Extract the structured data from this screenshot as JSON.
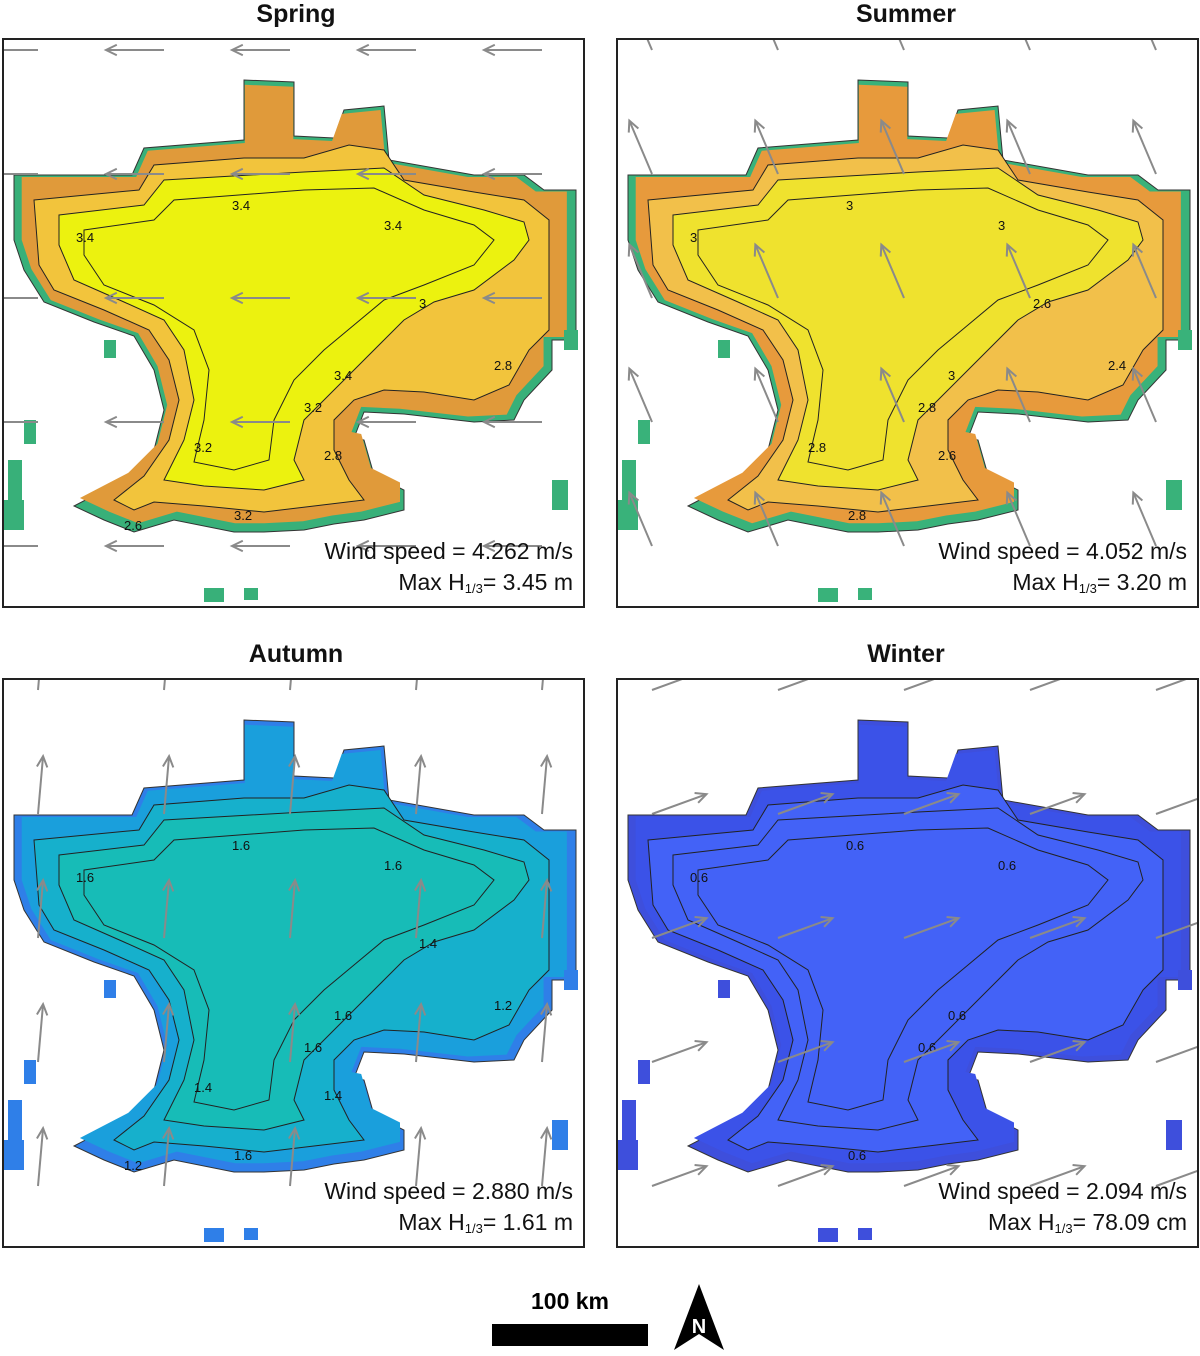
{
  "panels": [
    {
      "title": "Spring",
      "wind_label": "Wind speed = ",
      "wind_value": "4.262 m/s",
      "max_label": "Max H",
      "max_sub": "1/3",
      "max_value": "= 3.45 m",
      "colors": {
        "core": "#ecf20f",
        "mid": "#f2c43c",
        "edge": "#e09a3a",
        "shore": "#38b079",
        "tip": "#3a5cf5"
      },
      "contour_labels": [
        "3.4",
        "3.4",
        "3.4",
        "3.4",
        "3.2",
        "3.2",
        "3.2",
        "3",
        "2.8",
        "2.8",
        "2.6"
      ],
      "arrow_direction": "west"
    },
    {
      "title": "Summer",
      "wind_label": "Wind speed = ",
      "wind_value": "4.052 m/s",
      "max_label": "Max H",
      "max_sub": "1/3",
      "max_value": "= 3.20 m",
      "colors": {
        "core": "#efe22e",
        "mid": "#f2c04a",
        "edge": "#e79a3c",
        "shore": "#39b27a",
        "tip": "#3a5cf5"
      },
      "contour_labels": [
        "3",
        "3",
        "3",
        "3",
        "2.8",
        "2.8",
        "2.8",
        "2.6",
        "2.6",
        "2.4"
      ],
      "arrow_direction": "north-northwest"
    },
    {
      "title": "Autumn",
      "wind_label": "Wind speed = ",
      "wind_value": "2.880 m/s",
      "max_label": "Max H",
      "max_sub": "1/3",
      "max_value": "= 1.61 m",
      "colors": {
        "core": "#17bcb7",
        "mid": "#16b0cc",
        "edge": "#1a9fdc",
        "shore": "#2f7fe8",
        "tip": "#3a5cf5"
      },
      "contour_labels": [
        "1.6",
        "1.6",
        "1.6",
        "1.6",
        "1.6",
        "1.6",
        "1.4",
        "1.4",
        "1.4",
        "1.2",
        "1.2"
      ],
      "arrow_direction": "north"
    },
    {
      "title": "Winter",
      "wind_label": "Wind speed = ",
      "wind_value": "2.094 m/s",
      "max_label": "Max H",
      "max_sub": "1/3",
      "max_value": "= 78.09 cm",
      "colors": {
        "core": "#4362f7",
        "mid": "#4362f7",
        "edge": "#3b52e8",
        "shore": "#3e4fdc",
        "tip": "#3a42c8"
      },
      "contour_labels": [
        "0.6",
        "0.6",
        "0.6",
        "0.6",
        "0.6",
        "0.6"
      ],
      "arrow_direction": "east-northeast"
    }
  ],
  "scale_bar": {
    "label": "100 km"
  },
  "north_arrow": {
    "letter": "N"
  }
}
